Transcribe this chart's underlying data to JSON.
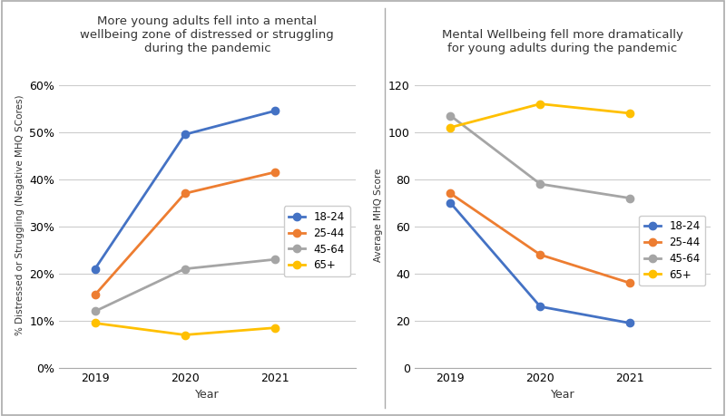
{
  "years": [
    2019,
    2020,
    2021
  ],
  "left_title": "More young adults fell into a mental\nwellbeing zone of distressed or struggling\nduring the pandemic",
  "left_ylabel": "% Distressed or Struggling (Negative MHQ SCores)",
  "left_xlabel": "Year",
  "left_ylim": [
    0,
    0.65
  ],
  "left_yticks": [
    0.0,
    0.1,
    0.2,
    0.3,
    0.4,
    0.5,
    0.6
  ],
  "left_ytick_labels": [
    "0%",
    "10%",
    "20%",
    "30%",
    "40%",
    "50%",
    "60%"
  ],
  "left_series": [
    {
      "label": "18-24",
      "color": "#4472C4",
      "values": [
        0.21,
        0.495,
        0.545
      ]
    },
    {
      "label": "25-44",
      "color": "#ED7D31",
      "values": [
        0.155,
        0.37,
        0.415
      ]
    },
    {
      "label": "45-64",
      "color": "#A5A5A5",
      "values": [
        0.12,
        0.21,
        0.23
      ]
    },
    {
      "label": "65+",
      "color": "#FFC000",
      "values": [
        0.095,
        0.07,
        0.085
      ]
    }
  ],
  "right_title": "Mental Wellbeing fell more dramatically\nfor young adults during the pandemic",
  "right_ylabel": "Average MHQ Score",
  "right_xlabel": "Year",
  "right_ylim": [
    0,
    130
  ],
  "right_yticks": [
    0,
    20,
    40,
    60,
    80,
    100,
    120
  ],
  "right_ytick_labels": [
    "0",
    "20",
    "40",
    "60",
    "80",
    "100",
    "120"
  ],
  "right_series": [
    {
      "label": "18-24",
      "color": "#4472C4",
      "values": [
        70,
        26,
        19
      ]
    },
    {
      "label": "25-44",
      "color": "#ED7D31",
      "values": [
        74,
        48,
        36
      ]
    },
    {
      "label": "45-64",
      "color": "#A5A5A5",
      "values": [
        107,
        78,
        72
      ]
    },
    {
      "label": "65+",
      "color": "#FFC000",
      "values": [
        102,
        112,
        108
      ]
    }
  ],
  "marker": "o",
  "marker_size": 6,
  "line_width": 2,
  "background_color": "#FFFFFF",
  "grid_color": "#CCCCCC",
  "spine_color": "#AAAAAA"
}
